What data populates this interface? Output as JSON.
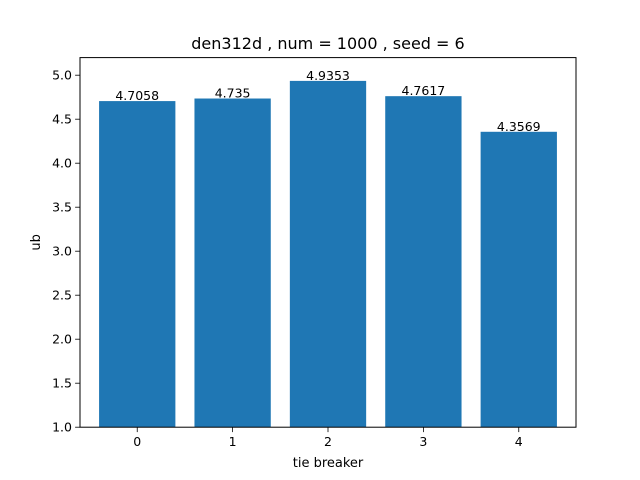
{
  "chart_data": {
    "type": "bar",
    "title": "den312d , num = 1000 , seed = 6",
    "xlabel": "tie breaker",
    "ylabel": "ub",
    "categories": [
      "0",
      "1",
      "2",
      "3",
      "4"
    ],
    "values": [
      4.7058,
      4.735,
      4.9353,
      4.7617,
      4.3569
    ],
    "data_labels": [
      "4.7058",
      "4.735",
      "4.9353",
      "4.7617",
      "4.3569"
    ],
    "ylim": [
      1.0,
      5.2
    ],
    "yticks": [
      1.0,
      1.5,
      2.0,
      2.5,
      3.0,
      3.5,
      4.0,
      4.5,
      5.0
    ],
    "ytick_labels": [
      "1.0",
      "1.5",
      "2.0",
      "2.5",
      "3.0",
      "3.5",
      "4.0",
      "4.5",
      "5.0"
    ],
    "bar_color": "#1f77b4",
    "grid": false,
    "legend": "none"
  }
}
